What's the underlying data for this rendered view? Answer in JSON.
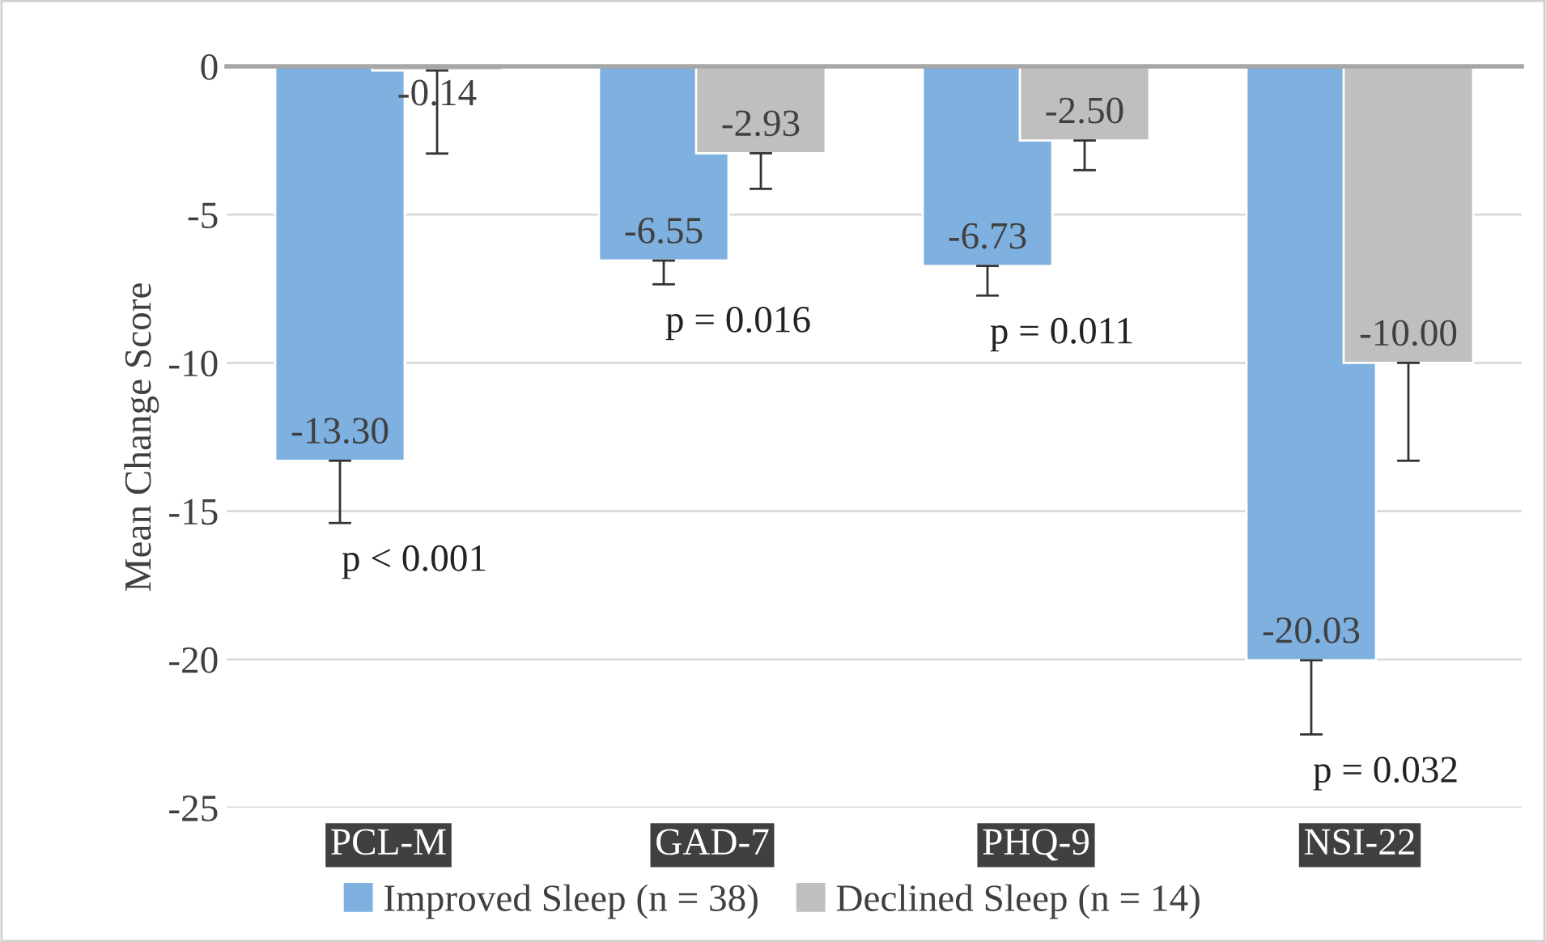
{
  "chart_data": {
    "type": "bar",
    "ylabel": "Mean Change Score",
    "categories": [
      "PCL-M",
      "GAD-7",
      "PHQ-9",
      "NSI-22"
    ],
    "series": [
      {
        "name": "Improved Sleep (n = 38)",
        "color": "#7eb0e0",
        "values": [
          -13.3,
          -6.55,
          -6.73,
          -20.03
        ],
        "value_labels": [
          "-13.30",
          "-6.55",
          "-6.73",
          "-20.03"
        ],
        "errors": [
          [
            -15.4,
            -13.3
          ],
          [
            -7.35,
            -6.55
          ],
          [
            -7.73,
            -6.73
          ],
          [
            -22.53,
            -20.03
          ]
        ]
      },
      {
        "name": "Declined Sleep (n = 14)",
        "color": "#bfbfbf",
        "values": [
          -0.14,
          -2.93,
          -2.5,
          -10.0
        ],
        "value_labels": [
          "-0.14",
          "-2.93",
          "-2.50",
          "-10.00"
        ],
        "errors": [
          [
            -2.94,
            -0.14
          ],
          [
            -4.13,
            -2.93
          ],
          [
            -3.5,
            -2.5
          ],
          [
            -13.3,
            -10.0
          ]
        ]
      }
    ],
    "ylim": [
      -25,
      0
    ],
    "yticks": [
      0,
      {
        "value": -5,
        "label": "-5"
      },
      {
        "value": -10,
        "label": "-10"
      },
      {
        "value": -15,
        "label": "-15"
      },
      {
        "value": -20,
        "label": "-20"
      },
      {
        "value": -25,
        "label": "-25"
      }
    ],
    "grid": "y",
    "legend": "bottom",
    "annotations": [
      "p < 0.001",
      "p = 0.016",
      "p = 0.011",
      "p = 0.032"
    ]
  }
}
